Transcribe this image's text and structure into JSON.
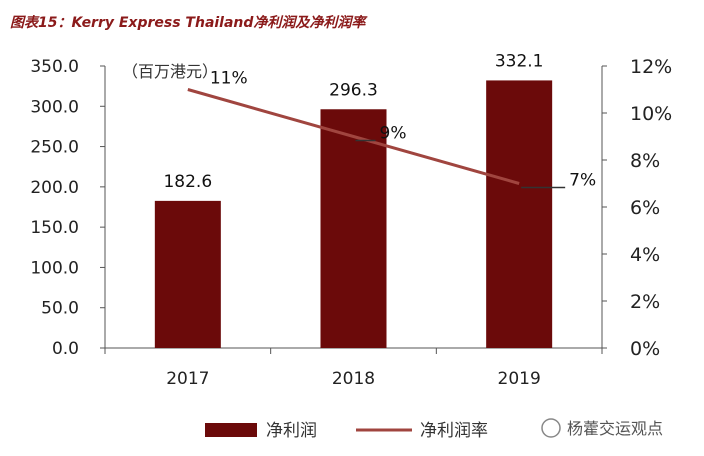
{
  "chart_data": {
    "type": "bar",
    "title": "图表15：Kerry Express Thailand净利润及净利润率",
    "unit_label": "（百万港元）",
    "categories": [
      "2017",
      "2018",
      "2019"
    ],
    "series": [
      {
        "name": "净利润",
        "kind": "bar",
        "axis": "left",
        "color": "#6b0a0a",
        "values": [
          182.6,
          296.3,
          332.1
        ],
        "labels": [
          "182.6",
          "296.3",
          "332.1"
        ]
      },
      {
        "name": "净利润率",
        "kind": "line",
        "axis": "right",
        "color": "#a0453f",
        "values": [
          11,
          9,
          7
        ],
        "labels": [
          "11%",
          "9%",
          "7%"
        ]
      }
    ],
    "y_left": {
      "min": 0,
      "max": 350,
      "ticks": [
        "0.0",
        "50.0",
        "100.0",
        "150.0",
        "200.0",
        "250.0",
        "300.0",
        "350.0"
      ]
    },
    "y_right": {
      "min": 0,
      "max": 12,
      "ticks": [
        "0%",
        "2%",
        "4%",
        "6%",
        "8%",
        "10%",
        "12%"
      ]
    },
    "legend_position": "bottom"
  },
  "watermark": "杨藿交运观点"
}
